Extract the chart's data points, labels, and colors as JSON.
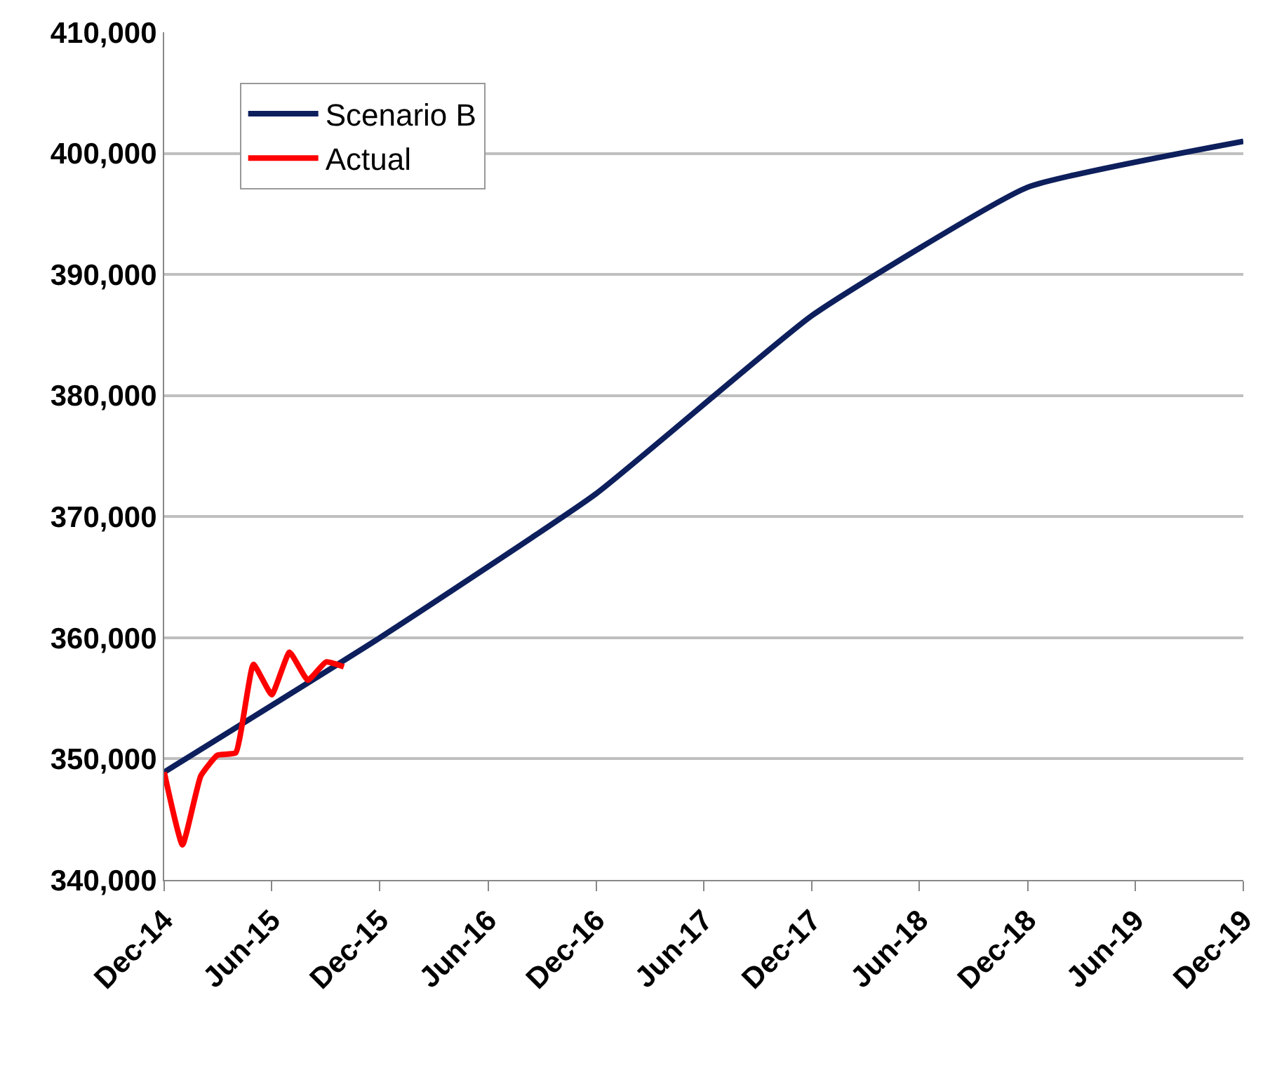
{
  "chart_data": {
    "type": "line",
    "series": [
      {
        "name": "Scenario B",
        "color": "#0d1f5c",
        "x": [
          "2014-12",
          "2015-12",
          "2016-12",
          "2017-12",
          "2018-12",
          "2019-12"
        ],
        "values": [
          348900,
          360000,
          371900,
          386600,
          397200,
          401000
        ]
      },
      {
        "name": "Actual",
        "color": "#ff0000",
        "x": [
          "2014-12",
          "2015-01",
          "2015-02",
          "2015-03",
          "2015-04",
          "2015-05",
          "2015-06",
          "2015-07",
          "2015-08",
          "2015-09",
          "2015-10"
        ],
        "values": [
          348900,
          342900,
          348600,
          350300,
          350500,
          357800,
          355300,
          358800,
          356500,
          358000,
          357600
        ]
      }
    ],
    "xlim": [
      "2014-12",
      "2019-12"
    ],
    "xticks": [
      {
        "value": "2014-12",
        "label": "Dec-14"
      },
      {
        "value": "2015-06",
        "label": "Jun-15"
      },
      {
        "value": "2015-12",
        "label": "Dec-15"
      },
      {
        "value": "2016-06",
        "label": "Jun-16"
      },
      {
        "value": "2016-12",
        "label": "Dec-16"
      },
      {
        "value": "2017-06",
        "label": "Jun-17"
      },
      {
        "value": "2017-12",
        "label": "Dec-17"
      },
      {
        "value": "2018-06",
        "label": "Jun-18"
      },
      {
        "value": "2018-12",
        "label": "Dec-18"
      },
      {
        "value": "2019-06",
        "label": "Jun-19"
      },
      {
        "value": "2019-12",
        "label": "Dec-19"
      }
    ],
    "ylim": [
      340000,
      410000
    ],
    "yticks": [
      {
        "value": 340000,
        "label": "340,000"
      },
      {
        "value": 350000,
        "label": "350,000"
      },
      {
        "value": 360000,
        "label": "360,000"
      },
      {
        "value": 370000,
        "label": "370,000"
      },
      {
        "value": 380000,
        "label": "380,000"
      },
      {
        "value": 390000,
        "label": "390,000"
      },
      {
        "value": 400000,
        "label": "400,000"
      },
      {
        "value": 410000,
        "label": "410,000"
      }
    ],
    "grid": "y",
    "legend": "top left",
    "marker": "none",
    "line_style": "solid"
  }
}
